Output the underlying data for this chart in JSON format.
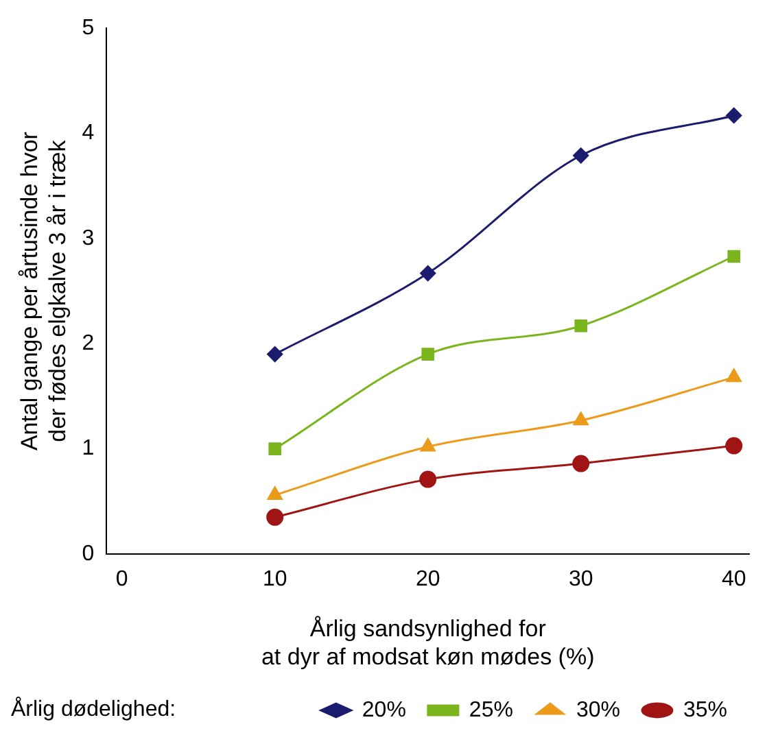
{
  "chart_data": {
    "type": "line",
    "xlabel": "Årlig sandsynlighed for\nat dyr af modsat køn mødes (%)",
    "ylabel": "Antal gange per årtusinde hvor\nder fødes elgkalve 3 år i træk",
    "legend_title": "Årlig dødelighed:",
    "x": [
      10,
      20,
      30,
      40
    ],
    "xlim": [
      -1,
      41
    ],
    "xticks": [
      0,
      10,
      20,
      30,
      40
    ],
    "ylim": [
      0,
      5
    ],
    "yticks": [
      0,
      1,
      2,
      3,
      4,
      5
    ],
    "grid": false,
    "legend": "bottom",
    "series": [
      {
        "name": "20%",
        "color": "#1c1c6e",
        "marker": "diamond",
        "values": [
          1.9,
          2.67,
          3.79,
          4.17
        ]
      },
      {
        "name": "25%",
        "color": "#7ab51d",
        "marker": "square",
        "values": [
          1.0,
          1.9,
          2.17,
          2.83
        ]
      },
      {
        "name": "30%",
        "color": "#eb9a1a",
        "marker": "triangle",
        "values": [
          0.56,
          1.02,
          1.27,
          1.68
        ]
      },
      {
        "name": "35%",
        "color": "#a01414",
        "marker": "circle",
        "values": [
          0.35,
          0.71,
          0.86,
          1.03
        ]
      }
    ]
  }
}
